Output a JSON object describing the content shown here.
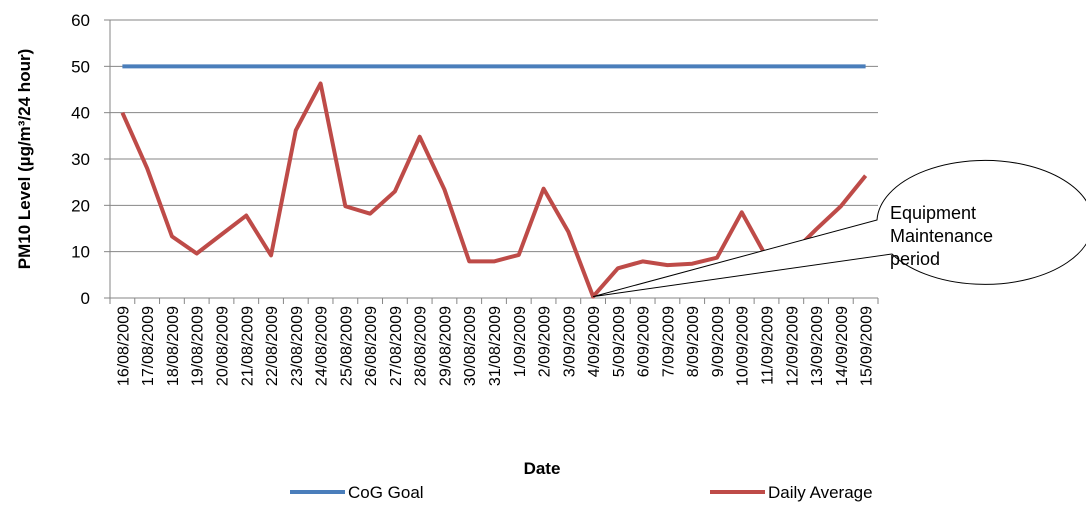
{
  "chart_data": {
    "type": "line",
    "x_label": "Date",
    "y_label": "PM10 Level (µg/m³/24 hour)",
    "categories": [
      "16/08/2009",
      "17/08/2009",
      "18/08/2009",
      "19/08/2009",
      "20/08/2009",
      "21/08/2009",
      "22/08/2009",
      "23/08/2009",
      "24/08/2009",
      "25/08/2009",
      "26/08/2009",
      "27/08/2009",
      "28/08/2009",
      "29/08/2009",
      "30/08/2009",
      "31/08/2009",
      "1/09/2009",
      "2/09/2009",
      "3/09/2009",
      "4/09/2009",
      "5/09/2009",
      "6/09/2009",
      "7/09/2009",
      "8/09/2009",
      "9/09/2009",
      "10/09/2009",
      "11/09/2009",
      "12/09/2009",
      "13/09/2009",
      "14/09/2009",
      "15/09/2009"
    ],
    "series": [
      {
        "name": "CoG Goal",
        "color": "#4a7ebb",
        "values": [
          50,
          50,
          50,
          50,
          50,
          50,
          50,
          50,
          50,
          50,
          50,
          50,
          50,
          50,
          50,
          50,
          50,
          50,
          50,
          50,
          50,
          50,
          50,
          50,
          50,
          50,
          50,
          50,
          50,
          50,
          50
        ]
      },
      {
        "name": "Daily Average",
        "color": "#be4b48",
        "values": [
          40,
          28,
          13.3,
          9.6,
          13.7,
          17.8,
          9.2,
          36.2,
          46.3,
          19.8,
          18.2,
          23,
          34.8,
          23.4,
          7.9,
          7.9,
          9.3,
          23.6,
          14.3,
          0.3,
          6.4,
          7.9,
          7.1,
          7.4,
          8.7,
          18.5,
          8.8,
          9.5,
          14.8,
          19.8,
          26.4
        ]
      }
    ],
    "ylim": [
      0,
      60
    ],
    "yticks": [
      0,
      10,
      20,
      30,
      40,
      50,
      60
    ],
    "grid": true,
    "annotation": [
      "Equipment",
      "Maintenance",
      "period"
    ]
  }
}
